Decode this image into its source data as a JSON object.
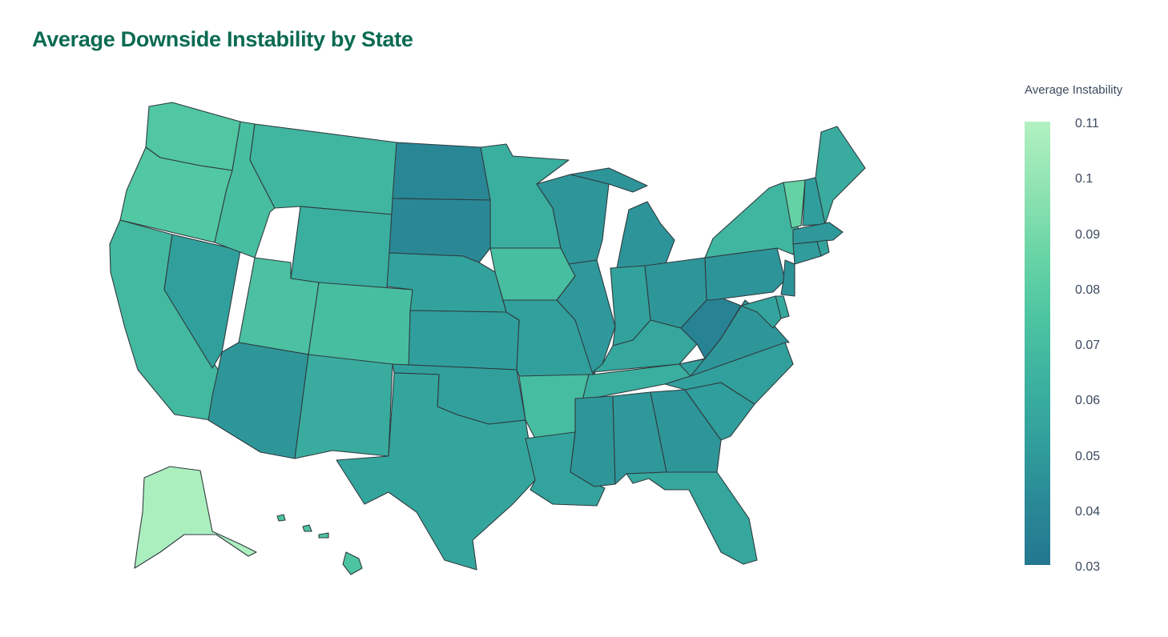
{
  "title": "Average Downside Instability by State",
  "colorbar": {
    "title": "Average Instability",
    "min": 0.03,
    "max": 0.11,
    "ticks": [
      "0.11",
      "0.1",
      "0.09",
      "0.08",
      "0.07",
      "0.06",
      "0.05",
      "0.04",
      "0.03"
    ],
    "tick_values": [
      0.11,
      0.1,
      0.09,
      0.08,
      0.07,
      0.06,
      0.05,
      0.04,
      0.03
    ],
    "colors": [
      "#23778f",
      "#2a8996",
      "#31a09c",
      "#3db3a0",
      "#4fc6a1",
      "#6cd6a7",
      "#92e4b3",
      "#b2f1c1"
    ]
  },
  "chart_data": {
    "type": "choropleth",
    "title": "Average Downside Instability by State",
    "colorbar_title": "Average Instability",
    "range": [
      0.03,
      0.11
    ],
    "values": {
      "WA": 0.076,
      "OR": 0.077,
      "CA": 0.068,
      "NV": 0.053,
      "ID": 0.071,
      "MT": 0.066,
      "WY": 0.061,
      "UT": 0.073,
      "CO": 0.071,
      "AZ": 0.048,
      "NM": 0.06,
      "ND": 0.04,
      "SD": 0.041,
      "NE": 0.054,
      "KS": 0.052,
      "OK": 0.053,
      "TX": 0.056,
      "MN": 0.061,
      "IA": 0.071,
      "MO": 0.053,
      "AR": 0.07,
      "LA": 0.055,
      "WI": 0.048,
      "IL": 0.049,
      "MI": 0.047,
      "IN": 0.054,
      "OH": 0.048,
      "KY": 0.057,
      "TN": 0.062,
      "MS": 0.048,
      "AL": 0.049,
      "GA": 0.048,
      "FL": 0.057,
      "SC": 0.052,
      "NC": 0.053,
      "VA": 0.048,
      "WV": 0.037,
      "PA": 0.047,
      "NY": 0.066,
      "VT": 0.084,
      "NH": 0.052,
      "ME": 0.06,
      "MA": 0.049,
      "CT": 0.051,
      "RI": 0.055,
      "NJ": 0.046,
      "DE": 0.058,
      "MD": 0.055,
      "AK": 0.108,
      "HI": 0.074
    }
  }
}
